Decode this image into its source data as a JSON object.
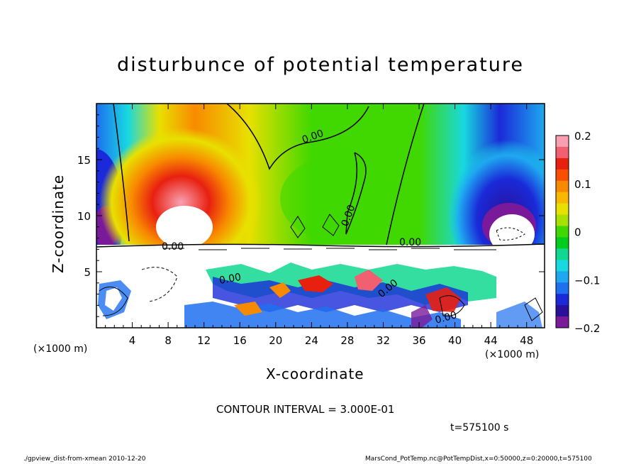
{
  "chart_data": {
    "type": "heatmap",
    "title": "disturbunce of potential temperature",
    "xlabel": "X-coordinate",
    "ylabel": "Z-coordinate",
    "x_unit": "(×1000 m)",
    "y_unit": "(×1000 m)",
    "xlim": [
      0,
      50
    ],
    "ylim": [
      0,
      20
    ],
    "x_ticks": [
      4,
      8,
      12,
      16,
      20,
      24,
      28,
      32,
      36,
      40,
      44,
      48
    ],
    "y_ticks": [
      5,
      10,
      15
    ],
    "colorbar": {
      "range": [
        -0.2,
        0.2
      ],
      "ticks": [
        {
          "value": 0.2,
          "label": "0.2"
        },
        {
          "value": 0.1,
          "label": "0.1"
        },
        {
          "value": 0.0,
          "label": "0"
        },
        {
          "value": -0.1,
          "label": "−0.1"
        },
        {
          "value": -0.2,
          "label": "−0.2"
        }
      ],
      "colors": [
        "#7a1a9a",
        "#2a0f9a",
        "#1a2ad8",
        "#1e70f0",
        "#1ea8f0",
        "#18d8e0",
        "#10d890",
        "#00cc20",
        "#40d800",
        "#a8e000",
        "#e8e000",
        "#f8b800",
        "#f88a00",
        "#f85000",
        "#e82010",
        "#f06070",
        "#f8a0b0"
      ]
    },
    "contour_labels": [
      "0.00",
      "0.00",
      "0.00",
      "0.00",
      "0.00",
      "0.00",
      "0.00"
    ],
    "contour_interval_text": "CONTOUR INTERVAL = 3.000E-01",
    "time_text": "t=575100 s",
    "footer_left": "./gpview_dist-from-xmean  2010-12-20",
    "footer_right": "MarsCond_PotTemp.nc@PotTempDist,x=0:50000,z=0:20000,t=575100"
  }
}
